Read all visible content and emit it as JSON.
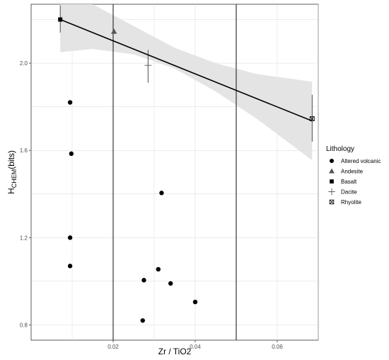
{
  "chart_data": {
    "type": "scatter",
    "xlabel": "Zr / TiO2",
    "ylabel": {
      "base": "H",
      "sub": "CHEM",
      "suffix": "(bits)"
    },
    "xlim": [
      0.0,
      0.07
    ],
    "ylim": [
      0.73,
      2.27
    ],
    "x_ticks": [
      0.02,
      0.04,
      0.06
    ],
    "x_tick_labels": [
      "0.02",
      "0.04",
      "0.06"
    ],
    "y_ticks": [
      0.8,
      1.2,
      1.6,
      2.0
    ],
    "y_tick_labels": [
      "0.8",
      "1.2",
      "1.6",
      "2.0"
    ],
    "grid": true,
    "vertical_lines": [
      0.02,
      0.05
    ],
    "legend": {
      "title": "Lithology",
      "position": "right",
      "items": [
        {
          "label": "Altered volcanic",
          "shape": "circle"
        },
        {
          "label": "Andesite",
          "shape": "triangle"
        },
        {
          "label": "Basalt",
          "shape": "square"
        },
        {
          "label": "Dacite",
          "shape": "plus"
        },
        {
          "label": "Rhyolite",
          "shape": "square-x"
        }
      ]
    },
    "series": [
      {
        "name": "Altered volcanic",
        "shape": "circle",
        "points": [
          {
            "x": 0.0095,
            "y": 1.82
          },
          {
            "x": 0.0098,
            "y": 1.585
          },
          {
            "x": 0.0095,
            "y": 1.2
          },
          {
            "x": 0.0095,
            "y": 1.07
          },
          {
            "x": 0.0318,
            "y": 1.405
          },
          {
            "x": 0.031,
            "y": 1.055
          },
          {
            "x": 0.0275,
            "y": 1.005
          },
          {
            "x": 0.034,
            "y": 0.99
          },
          {
            "x": 0.04,
            "y": 0.905
          },
          {
            "x": 0.0272,
            "y": 0.82
          }
        ]
      },
      {
        "name": "Andesite",
        "shape": "triangle",
        "color": "#555555",
        "points": [
          {
            "x": 0.0202,
            "y": 2.145
          }
        ]
      },
      {
        "name": "Basalt",
        "shape": "square",
        "points": [
          {
            "x": 0.0071,
            "y": 2.2
          }
        ]
      },
      {
        "name": "Dacite",
        "shape": "plus",
        "color": "#555555",
        "points": [
          {
            "x": 0.0285,
            "y": 1.99
          }
        ]
      },
      {
        "name": "Rhyolite",
        "shape": "square-x",
        "points": [
          {
            "x": 0.0685,
            "y": 1.745
          }
        ]
      }
    ],
    "regression": {
      "x": [
        0.0071,
        0.0685
      ],
      "y": [
        2.2,
        1.735
      ],
      "ci_band": [
        {
          "x": 0.0071,
          "lower": 2.05,
          "upper": 2.29
        },
        {
          "x": 0.015,
          "lower": 2.065,
          "upper": 2.27
        },
        {
          "x": 0.025,
          "lower": 2.04,
          "upper": 2.17
        },
        {
          "x": 0.035,
          "lower": 1.975,
          "upper": 2.07
        },
        {
          "x": 0.045,
          "lower": 1.87,
          "upper": 2.0
        },
        {
          "x": 0.055,
          "lower": 1.745,
          "upper": 1.95
        },
        {
          "x": 0.0685,
          "lower": 1.555,
          "upper": 1.915
        }
      ],
      "error_bars": [
        {
          "x": 0.0071,
          "low": 2.14,
          "high": 2.265
        },
        {
          "x": 0.0285,
          "low": 1.91,
          "high": 2.06
        },
        {
          "x": 0.0685,
          "low": 1.64,
          "high": 1.855
        }
      ]
    },
    "colors": {
      "points": "#000000",
      "band": "#e3e3e3",
      "grid": "#d9d9d9",
      "line": "#000000"
    }
  }
}
